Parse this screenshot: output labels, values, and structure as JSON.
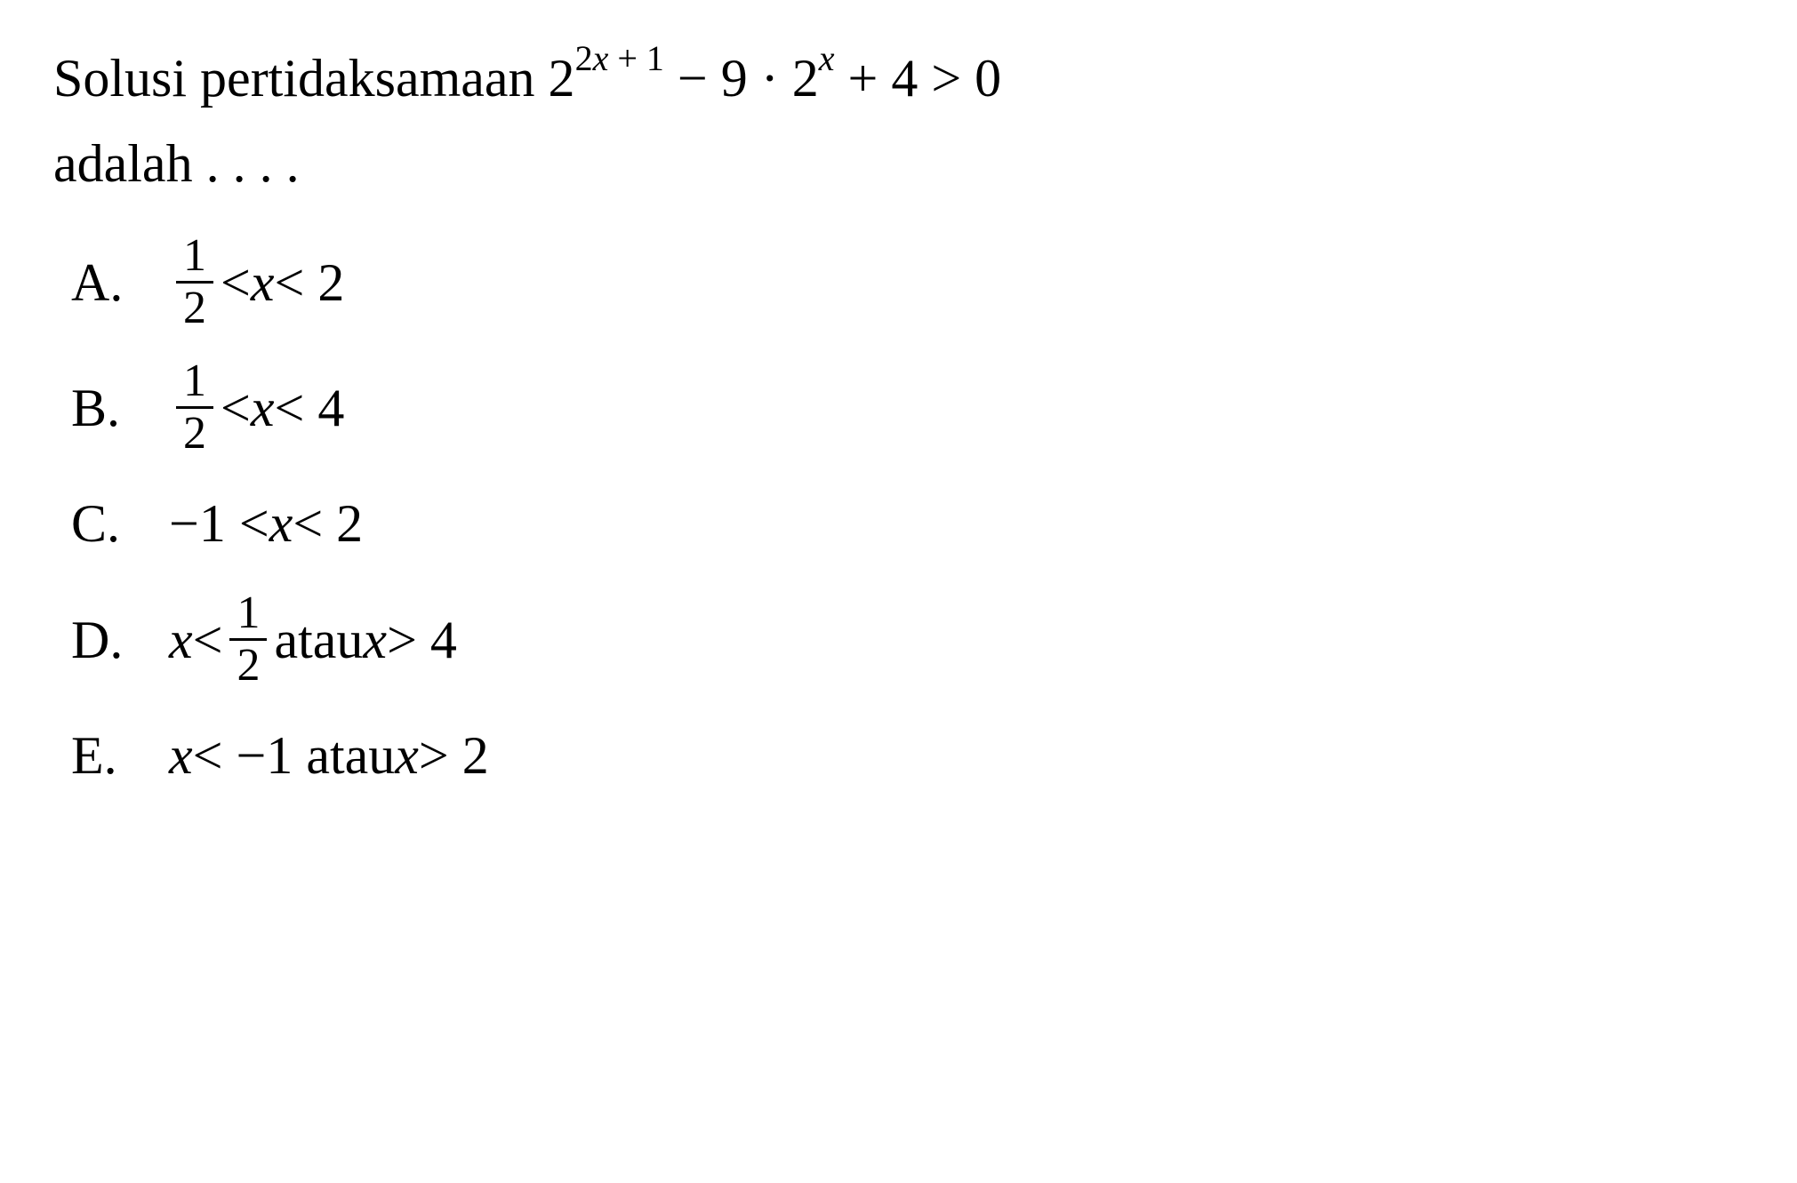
{
  "question": {
    "line1_part1": "Solusi pertidaksamaan 2",
    "exp1": "2",
    "exp1_var": "x",
    "exp1_plus": " + 1",
    "mid1": " − 9 · 2",
    "exp2_var": "x",
    "mid2": " + 4 > 0",
    "line2": "adalah . . . ."
  },
  "options": {
    "A": {
      "label": "A.",
      "frac_num": "1",
      "frac_den": "2",
      "text1": " < ",
      "var": "x",
      "text2": " < 2"
    },
    "B": {
      "label": "B.",
      "frac_num": "1",
      "frac_den": "2",
      "text1": " < ",
      "var": "x",
      "text2": " < 4"
    },
    "C": {
      "label": "C.",
      "text1": "−1 < ",
      "var": "x",
      "text2": " < 2"
    },
    "D": {
      "label": "D.",
      "var1": "x",
      "text1": " < ",
      "frac_num": "1",
      "frac_den": "2",
      "text2": " atau ",
      "var2": "x",
      "text3": " > 4"
    },
    "E": {
      "label": "E.",
      "var1": "x",
      "text1": " < −1 atau ",
      "var2": "x",
      "text2": " > 2"
    }
  },
  "style": {
    "background_color": "#ffffff",
    "text_color": "#000000",
    "font_family": "Times New Roman",
    "base_fontsize": 60,
    "superscript_fontsize": 40,
    "fraction_fontsize": 52
  }
}
